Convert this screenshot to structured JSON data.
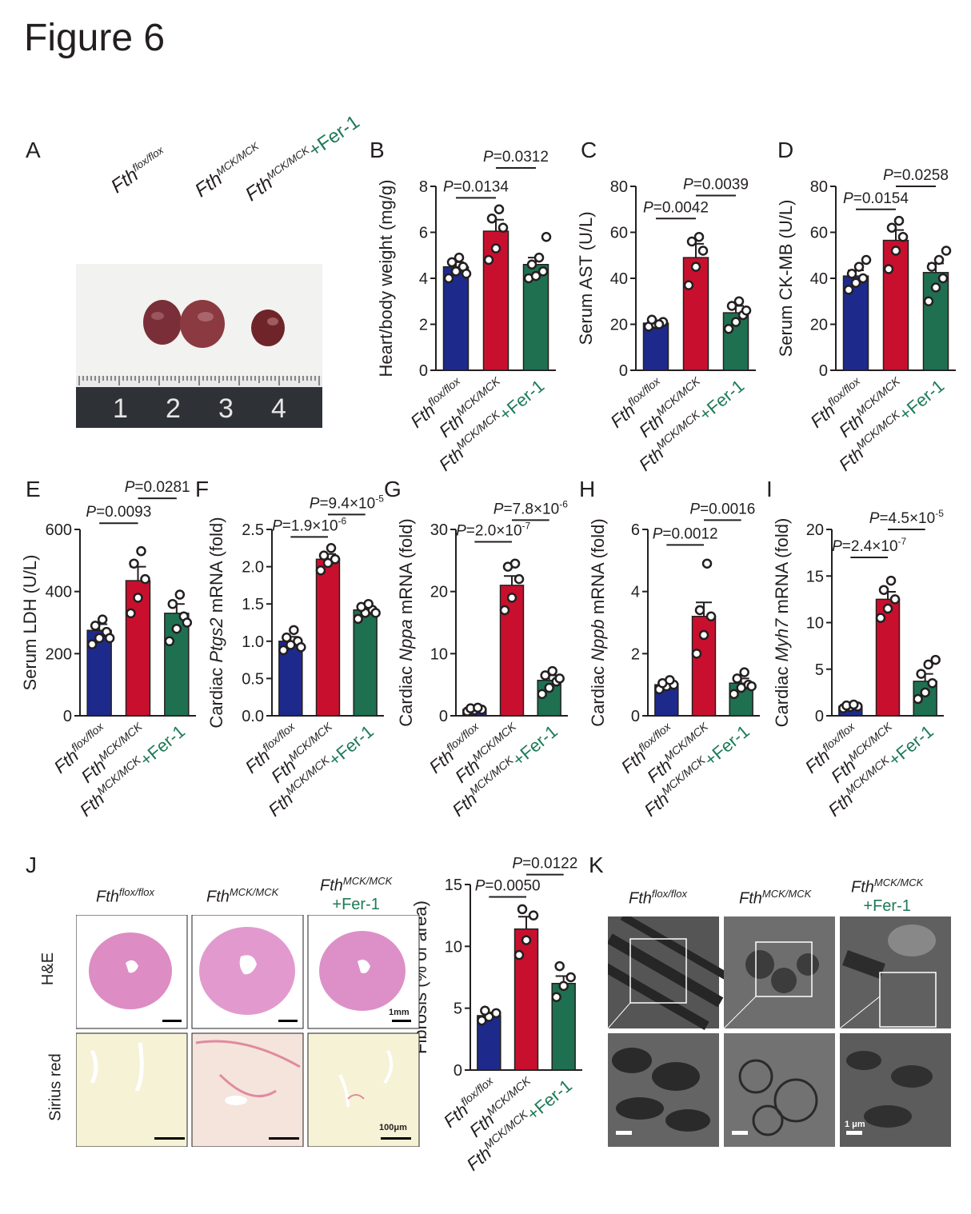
{
  "figure_title": "Figure 6",
  "panel_letters": {
    "A": "A",
    "B": "B",
    "C": "C",
    "D": "D",
    "E": "E",
    "F": "F",
    "G": "G",
    "H": "H",
    "I": "I",
    "J": "J",
    "K": "K"
  },
  "groups": [
    {
      "base": "Fth",
      "sup": "flox/flox",
      "suffix": ""
    },
    {
      "base": "Fth",
      "sup": "MCK/MCK",
      "suffix": ""
    },
    {
      "base": "Fth",
      "sup": "MCK/MCK",
      "suffix": "+Fer-1"
    }
  ],
  "photo_labels": {
    "ruler_numbers": [
      "1",
      "2",
      "3",
      "4"
    ],
    "histology_rows": [
      "H&E",
      "Sirius red"
    ],
    "scale_bars": {
      "he": "1mm",
      "sirius": "100μm",
      "em": "1 μm"
    }
  },
  "colors": {
    "g1": "#1d2a8c",
    "g2": "#c8102e",
    "g3": "#1e7050"
  },
  "chart_data": [
    {
      "id": "B",
      "type": "bar",
      "ylabel": "Heart/body weight (mg/g)",
      "ylabel_parts": [
        {
          "t": "Heart/body weight (mg/g)",
          "i": false
        }
      ],
      "ylim": [
        0,
        8
      ],
      "ticks": [
        0,
        2,
        4,
        6,
        8
      ],
      "values": [
        4.5,
        6.05,
        4.6
      ],
      "errors": [
        0.2,
        0.5,
        0.3
      ],
      "points": [
        [
          4.0,
          4.3,
          4.5,
          4.7,
          4.9,
          4.2
        ],
        [
          4.8,
          5.3,
          6.2,
          6.6,
          7.0
        ],
        [
          4.0,
          4.1,
          4.3,
          4.6,
          4.9,
          5.8
        ]
      ],
      "pvals": [
        {
          "a": 0,
          "b": 1,
          "text": "=0.0134",
          "y": 7.5
        },
        {
          "a": 1,
          "b": 2,
          "text": "=0.0312",
          "y": 8.8
        }
      ]
    },
    {
      "id": "C",
      "type": "bar",
      "ylabel": "Serum AST (U/L)",
      "ylabel_parts": [
        {
          "t": "Serum AST (U/L)",
          "i": false
        }
      ],
      "ylim": [
        0,
        80
      ],
      "ticks": [
        0,
        20,
        40,
        60,
        80
      ],
      "values": [
        20.5,
        49,
        25
      ],
      "errors": [
        1,
        6,
        3
      ],
      "points": [
        [
          19,
          20,
          21,
          22,
          20
        ],
        [
          37,
          45,
          52,
          56,
          58
        ],
        [
          18,
          21,
          24,
          28,
          30,
          26
        ]
      ],
      "pvals": [
        {
          "a": 0,
          "b": 1,
          "text": "=0.0042",
          "y": 66
        },
        {
          "a": 1,
          "b": 2,
          "text": "=0.0039",
          "y": 76
        }
      ]
    },
    {
      "id": "D",
      "type": "bar",
      "ylabel": "Serum CK-MB (U/L)",
      "ylabel_parts": [
        {
          "t": "Serum CK-MB (U/L)",
          "i": false
        }
      ],
      "ylim": [
        0,
        80
      ],
      "ticks": [
        0,
        20,
        40,
        60,
        80
      ],
      "values": [
        41,
        56.5,
        42.5
      ],
      "errors": [
        2.5,
        4.5,
        4
      ],
      "points": [
        [
          35,
          38,
          40,
          42,
          45,
          48
        ],
        [
          44,
          52,
          58,
          62,
          65
        ],
        [
          30,
          36,
          40,
          45,
          48,
          52
        ]
      ],
      "pvals": [
        {
          "a": 0,
          "b": 1,
          "text": "=0.0154",
          "y": 70
        },
        {
          "a": 1,
          "b": 2,
          "text": "=0.0258",
          "y": 80
        }
      ]
    },
    {
      "id": "E",
      "type": "bar",
      "ylabel": "Serum LDH (U/L)",
      "ylabel_parts": [
        {
          "t": "Serum LDH (U/L)",
          "i": false
        }
      ],
      "ylim": [
        0,
        600
      ],
      "ticks": [
        0,
        200,
        400,
        600
      ],
      "values": [
        275,
        435,
        330
      ],
      "errors": [
        20,
        45,
        30
      ],
      "points": [
        [
          230,
          250,
          270,
          290,
          310,
          250
        ],
        [
          330,
          380,
          440,
          490,
          530
        ],
        [
          240,
          280,
          320,
          360,
          390,
          300
        ]
      ],
      "pvals": [
        {
          "a": 0,
          "b": 1,
          "text": "=0.0093",
          "y": 620
        },
        {
          "a": 1,
          "b": 2,
          "text": "=0.0281",
          "y": 700
        }
      ]
    },
    {
      "id": "F",
      "type": "bar",
      "ylabel": "Cardiac Ptgs2 mRNA (fold)",
      "ylabel_parts": [
        {
          "t": "Cardiac ",
          "i": false
        },
        {
          "t": "Ptgs2",
          "i": true
        },
        {
          "t": " mRNA (fold)",
          "i": false
        }
      ],
      "ylim": [
        0,
        2.5
      ],
      "ticks": [
        0,
        0.5,
        1.0,
        1.5,
        2.0,
        2.5
      ],
      "tick_labels": [
        "0.0",
        "0.5",
        "1.0",
        "1.5",
        "2.0",
        "2.5"
      ],
      "values": [
        1.0,
        2.1,
        1.42
      ],
      "errors": [
        0.06,
        0.07,
        0.05
      ],
      "points": [
        [
          0.88,
          0.95,
          1.0,
          1.05,
          1.15,
          0.92
        ],
        [
          1.95,
          2.05,
          2.1,
          2.15,
          2.25
        ],
        [
          1.3,
          1.38,
          1.42,
          1.46,
          1.5,
          1.38
        ]
      ],
      "pvals": [
        {
          "a": 0,
          "b": 1,
          "text": "=1.9×10",
          "sup": "-6",
          "y": 2.4
        },
        {
          "a": 1,
          "b": 2,
          "text": "=9.4×10",
          "sup": "-5",
          "y": 2.7
        }
      ]
    },
    {
      "id": "G",
      "type": "bar",
      "ylabel": "Cardiac Nppa mRNA (fold)",
      "ylabel_parts": [
        {
          "t": "Cardiac ",
          "i": false
        },
        {
          "t": "Nppa",
          "i": true
        },
        {
          "t": " mRNA (fold)",
          "i": false
        }
      ],
      "ylim": [
        0,
        30
      ],
      "ticks": [
        0,
        10,
        20,
        30
      ],
      "values": [
        1.0,
        21,
        5.7
      ],
      "errors": [
        0.2,
        1.5,
        0.8
      ],
      "points": [
        [
          0.7,
          0.9,
          1.0,
          1.2,
          1.3
        ],
        [
          17,
          19,
          22,
          24,
          24.5
        ],
        [
          3.5,
          4.5,
          5.5,
          6.5,
          7.2,
          6.0
        ]
      ],
      "pvals": [
        {
          "a": 0,
          "b": 1,
          "text": "=2.0×10",
          "sup": "-7",
          "y": 28
        },
        {
          "a": 1,
          "b": 2,
          "text": "=7.8×10",
          "sup": "-6",
          "y": 31.5
        }
      ]
    },
    {
      "id": "H",
      "type": "bar",
      "ylabel": "Cardiac Nppb mRNA (fold)",
      "ylabel_parts": [
        {
          "t": "Cardiac ",
          "i": false
        },
        {
          "t": "Nppb",
          "i": true
        },
        {
          "t": " mRNA (fold)",
          "i": false
        }
      ],
      "ylim": [
        0,
        6
      ],
      "ticks": [
        0,
        2,
        4,
        6
      ],
      "values": [
        1.0,
        3.2,
        1.05
      ],
      "errors": [
        0.08,
        0.45,
        0.15
      ],
      "points": [
        [
          0.85,
          0.95,
          1.0,
          1.05,
          1.15
        ],
        [
          2.0,
          2.6,
          3.2,
          3.4,
          4.9
        ],
        [
          0.7,
          0.9,
          1.0,
          1.2,
          1.4,
          0.95
        ]
      ],
      "pvals": [
        {
          "a": 0,
          "b": 1,
          "text": "=0.0012",
          "y": 5.5
        },
        {
          "a": 1,
          "b": 2,
          "text": "=0.0016",
          "y": 6.3
        }
      ]
    },
    {
      "id": "I",
      "type": "bar",
      "ylabel": "Cardiac Myh7 mRNA (fold)",
      "ylabel_parts": [
        {
          "t": "Cardiac ",
          "i": false
        },
        {
          "t": "Myh7",
          "i": true
        },
        {
          "t": " mRNA (fold)",
          "i": false
        }
      ],
      "ylim": [
        0,
        20
      ],
      "ticks": [
        0,
        5,
        10,
        15,
        20
      ],
      "values": [
        1.0,
        12.5,
        3.7
      ],
      "errors": [
        0.1,
        0.8,
        0.8
      ],
      "points": [
        [
          0.8,
          0.95,
          1.0,
          1.1,
          1.2
        ],
        [
          10.5,
          11.5,
          12.5,
          13.5,
          14.5
        ],
        [
          1.8,
          2.5,
          3.5,
          4.5,
          5.5,
          6.0
        ]
      ],
      "pvals": [
        {
          "a": 0,
          "b": 1,
          "text": "=2.4×10",
          "sup": "-7",
          "y": 17
        },
        {
          "a": 1,
          "b": 2,
          "text": "=4.5×10",
          "sup": "-5",
          "y": 20
        }
      ]
    },
    {
      "id": "J",
      "type": "bar",
      "ylabel": "Fibrosis (% of area)",
      "ylabel_parts": [
        {
          "t": "Fibrosis (% of area)",
          "i": false
        }
      ],
      "ylim": [
        0,
        15
      ],
      "ticks": [
        0,
        5,
        10,
        15
      ],
      "values": [
        4.4,
        11.4,
        7.0
      ],
      "errors": [
        0.25,
        1.0,
        0.6
      ],
      "points": [
        [
          4.0,
          4.3,
          4.6,
          4.8
        ],
        [
          9.3,
          10.5,
          12.5,
          13.0
        ],
        [
          5.9,
          6.8,
          7.5,
          8.4
        ]
      ],
      "pvals": [
        {
          "a": 0,
          "b": 1,
          "text": "=0.0050",
          "y": 14.0
        },
        {
          "a": 1,
          "b": 2,
          "text": "=0.0122",
          "y": 15.8
        }
      ]
    }
  ]
}
